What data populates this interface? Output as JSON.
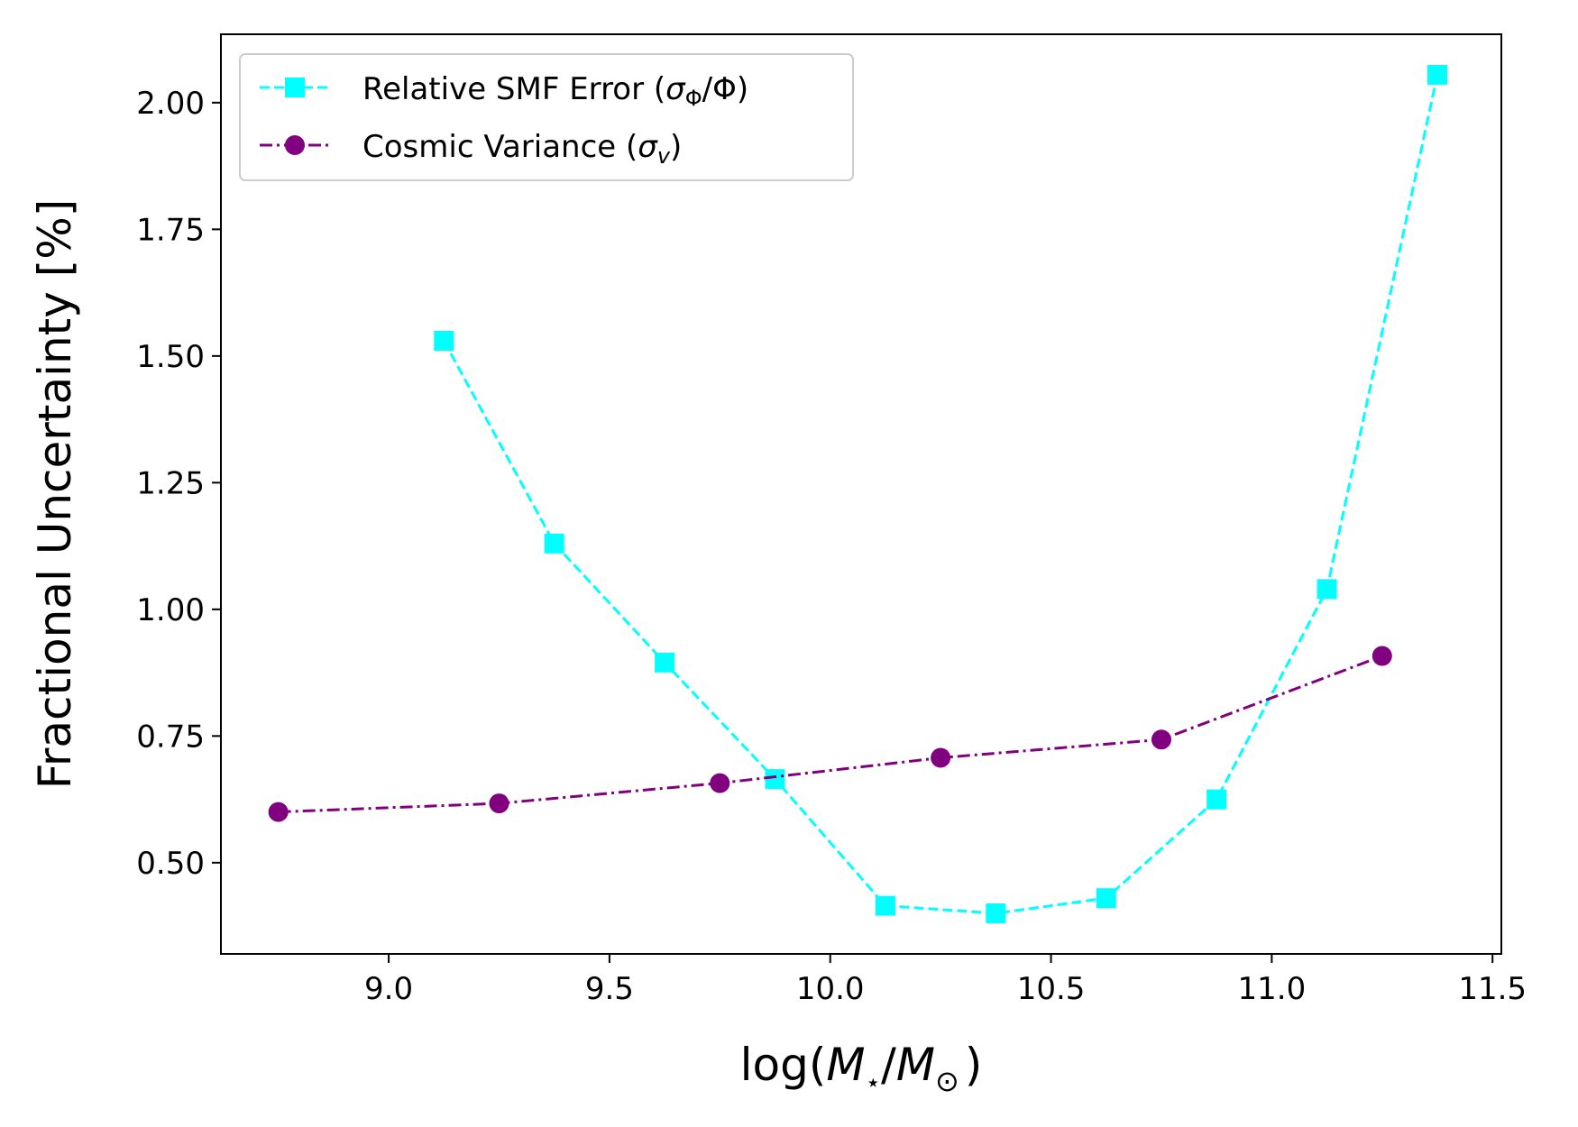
{
  "chart_data": {
    "type": "line",
    "xlabel": "log(M⋆/M⊙)",
    "ylabel": "Fractional Uncertainty [%]",
    "xlim": [
      8.62,
      11.52
    ],
    "ylim": [
      0.32,
      2.135
    ],
    "x_ticks": [
      9.0,
      9.5,
      10.0,
      10.5,
      11.0,
      11.5
    ],
    "x_tick_labels": [
      "9.0",
      "9.5",
      "10.0",
      "10.5",
      "11.0",
      "11.5"
    ],
    "y_ticks": [
      0.5,
      0.75,
      1.0,
      1.25,
      1.5,
      1.75,
      2.0
    ],
    "y_tick_labels": [
      "0.50",
      "0.75",
      "1.00",
      "1.25",
      "1.50",
      "1.75",
      "2.00"
    ],
    "grid": false,
    "legend_position": "top-left",
    "series": [
      {
        "name": "Relative SMF Error (σΦ/Φ)",
        "color": "#00ffff",
        "marker": "square",
        "linestyle": "dashed",
        "x": [
          9.125,
          9.375,
          9.625,
          9.875,
          10.125,
          10.375,
          10.625,
          10.875,
          11.125,
          11.375
        ],
        "y": [
          1.53,
          1.13,
          0.895,
          0.665,
          0.415,
          0.4,
          0.43,
          0.625,
          1.04,
          2.055
        ]
      },
      {
        "name": "Cosmic Variance (σv)",
        "color": "#800080",
        "marker": "circle",
        "linestyle": "dashdot",
        "x": [
          8.75,
          9.25,
          9.75,
          10.25,
          10.75,
          11.25
        ],
        "y": [
          0.6,
          0.617,
          0.657,
          0.707,
          0.743,
          0.908
        ]
      }
    ]
  },
  "legend": {
    "smf_prefix": "Relative SMF Error (",
    "smf_sigma": "σ",
    "smf_sub": "Φ",
    "smf_suffix": "/Φ)",
    "cv_prefix": "Cosmic Variance (",
    "cv_sigma": "σ",
    "cv_sub": "v",
    "cv_suffix": ")"
  },
  "axis_text": {
    "ylabel": "Fractional Uncertainty [%]",
    "xlabel_log": "log(",
    "xlabel_M1": "M",
    "xlabel_star": "⋆",
    "xlabel_slash": "/",
    "xlabel_M2": "M",
    "xlabel_sun": "⊙",
    "xlabel_close": ")"
  }
}
